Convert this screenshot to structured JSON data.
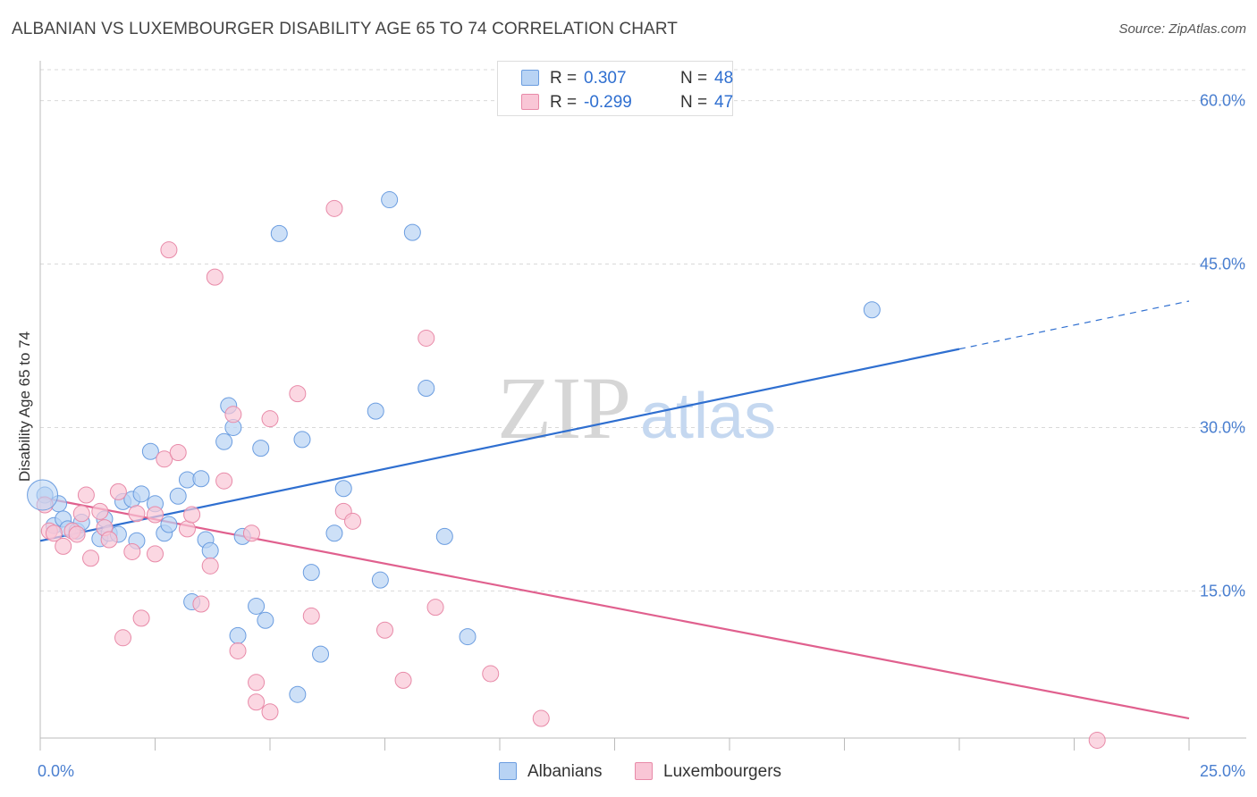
{
  "title": "ALBANIAN VS LUXEMBOURGER DISABILITY AGE 65 TO 74 CORRELATION CHART",
  "source": "Source: ZipAtlas.com",
  "watermark": {
    "zip": "ZIP",
    "atlas": "atlas"
  },
  "legend": {
    "rows": [
      {
        "r_label": "R =",
        "r_value": "0.307",
        "n_label": "N =",
        "n_value": "48",
        "fill": "#b8d3f4",
        "stroke": "#6b9de0"
      },
      {
        "r_label": "R =",
        "r_value": "-0.299",
        "n_label": "N =",
        "n_value": "47",
        "fill": "#f9c6d6",
        "stroke": "#e88aa8"
      }
    ]
  },
  "bottom_legend": [
    {
      "label": "Albanians",
      "fill": "#b8d3f4",
      "stroke": "#6b9de0"
    },
    {
      "label": "Luxembourgers",
      "fill": "#f9c6d6",
      "stroke": "#e88aa8"
    }
  ],
  "chart_data": {
    "type": "scatter",
    "title": "ALBANIAN VS LUXEMBOURGER DISABILITY AGE 65 TO 74 CORRELATION CHART",
    "xlabel": "",
    "ylabel": "Disability Age 65 to 74",
    "xlim": [
      0,
      25
    ],
    "ylim": [
      1.5,
      63
    ],
    "x_tick_labels": [
      "0.0%",
      "25.0%"
    ],
    "y_ticks": [
      15,
      30,
      45,
      60
    ],
    "y_tick_labels": [
      "15.0%",
      "30.0%",
      "45.0%",
      "60.0%"
    ],
    "grid": true,
    "legend_position": "top-center",
    "series": [
      {
        "name": "Albanians",
        "color": "#6b9de0",
        "fill": "#b8d3f4",
        "line_color": "#2f6fd0",
        "trend": {
          "x0": 0,
          "y0": 19.6,
          "x1": 20,
          "y1": 37.2,
          "dash_to_x": 25,
          "dash_to_y": 41.6
        },
        "points": [
          [
            0.1,
            23.8
          ],
          [
            0.3,
            21.0
          ],
          [
            0.4,
            23.0
          ],
          [
            0.5,
            21.6
          ],
          [
            0.6,
            20.7
          ],
          [
            0.8,
            20.5
          ],
          [
            0.9,
            21.3
          ],
          [
            1.3,
            19.8
          ],
          [
            1.4,
            21.6
          ],
          [
            1.5,
            20.3
          ],
          [
            1.7,
            20.2
          ],
          [
            1.8,
            23.2
          ],
          [
            2.0,
            23.4
          ],
          [
            2.1,
            19.6
          ],
          [
            2.2,
            23.9
          ],
          [
            2.4,
            27.8
          ],
          [
            2.5,
            23.0
          ],
          [
            2.7,
            20.3
          ],
          [
            2.8,
            21.1
          ],
          [
            3.0,
            23.7
          ],
          [
            3.2,
            25.2
          ],
          [
            3.3,
            14.0
          ],
          [
            3.5,
            25.3
          ],
          [
            3.6,
            19.7
          ],
          [
            3.7,
            18.7
          ],
          [
            4.0,
            28.7
          ],
          [
            4.1,
            32.0
          ],
          [
            4.2,
            30.0
          ],
          [
            4.3,
            10.9
          ],
          [
            4.4,
            20.0
          ],
          [
            4.7,
            13.6
          ],
          [
            4.8,
            28.1
          ],
          [
            4.9,
            12.3
          ],
          [
            5.2,
            47.8
          ],
          [
            5.6,
            5.5
          ],
          [
            5.7,
            28.9
          ],
          [
            5.9,
            16.7
          ],
          [
            6.1,
            9.2
          ],
          [
            6.4,
            20.3
          ],
          [
            6.6,
            24.4
          ],
          [
            7.3,
            31.5
          ],
          [
            7.4,
            16.0
          ],
          [
            7.6,
            50.9
          ],
          [
            8.1,
            47.9
          ],
          [
            8.4,
            33.6
          ],
          [
            8.8,
            20.0
          ],
          [
            9.3,
            10.8
          ],
          [
            18.1,
            40.8
          ]
        ]
      },
      {
        "name": "Luxembourgers",
        "color": "#e88aa8",
        "fill": "#f9c6d6",
        "line_color": "#e0608e",
        "trend": {
          "x0": 0,
          "y0": 23.6,
          "x1": 25,
          "y1": 3.3
        },
        "points": [
          [
            0.1,
            22.9
          ],
          [
            0.2,
            20.5
          ],
          [
            0.3,
            20.3
          ],
          [
            0.5,
            19.1
          ],
          [
            0.7,
            20.5
          ],
          [
            0.8,
            20.2
          ],
          [
            0.9,
            22.1
          ],
          [
            1.0,
            23.8
          ],
          [
            1.1,
            18.0
          ],
          [
            1.3,
            22.3
          ],
          [
            1.4,
            20.8
          ],
          [
            1.5,
            19.7
          ],
          [
            1.7,
            24.1
          ],
          [
            1.8,
            10.7
          ],
          [
            2.0,
            18.6
          ],
          [
            2.1,
            22.1
          ],
          [
            2.2,
            12.5
          ],
          [
            2.5,
            22.0
          ],
          [
            2.5,
            18.4
          ],
          [
            2.7,
            27.1
          ],
          [
            2.8,
            46.3
          ],
          [
            3.0,
            27.7
          ],
          [
            3.2,
            20.7
          ],
          [
            3.3,
            22.0
          ],
          [
            3.5,
            13.8
          ],
          [
            3.7,
            17.3
          ],
          [
            3.8,
            43.8
          ],
          [
            4.0,
            25.1
          ],
          [
            4.2,
            31.2
          ],
          [
            4.3,
            9.5
          ],
          [
            4.6,
            20.3
          ],
          [
            4.7,
            6.6
          ],
          [
            4.7,
            4.8
          ],
          [
            5.0,
            30.8
          ],
          [
            5.0,
            3.9
          ],
          [
            5.6,
            33.1
          ],
          [
            5.9,
            12.7
          ],
          [
            6.4,
            50.1
          ],
          [
            6.6,
            22.3
          ],
          [
            6.8,
            21.4
          ],
          [
            7.5,
            11.4
          ],
          [
            7.9,
            6.8
          ],
          [
            8.4,
            38.2
          ],
          [
            8.6,
            13.5
          ],
          [
            9.8,
            7.4
          ],
          [
            10.9,
            3.3
          ],
          [
            23.0,
            1.3
          ]
        ]
      }
    ]
  }
}
